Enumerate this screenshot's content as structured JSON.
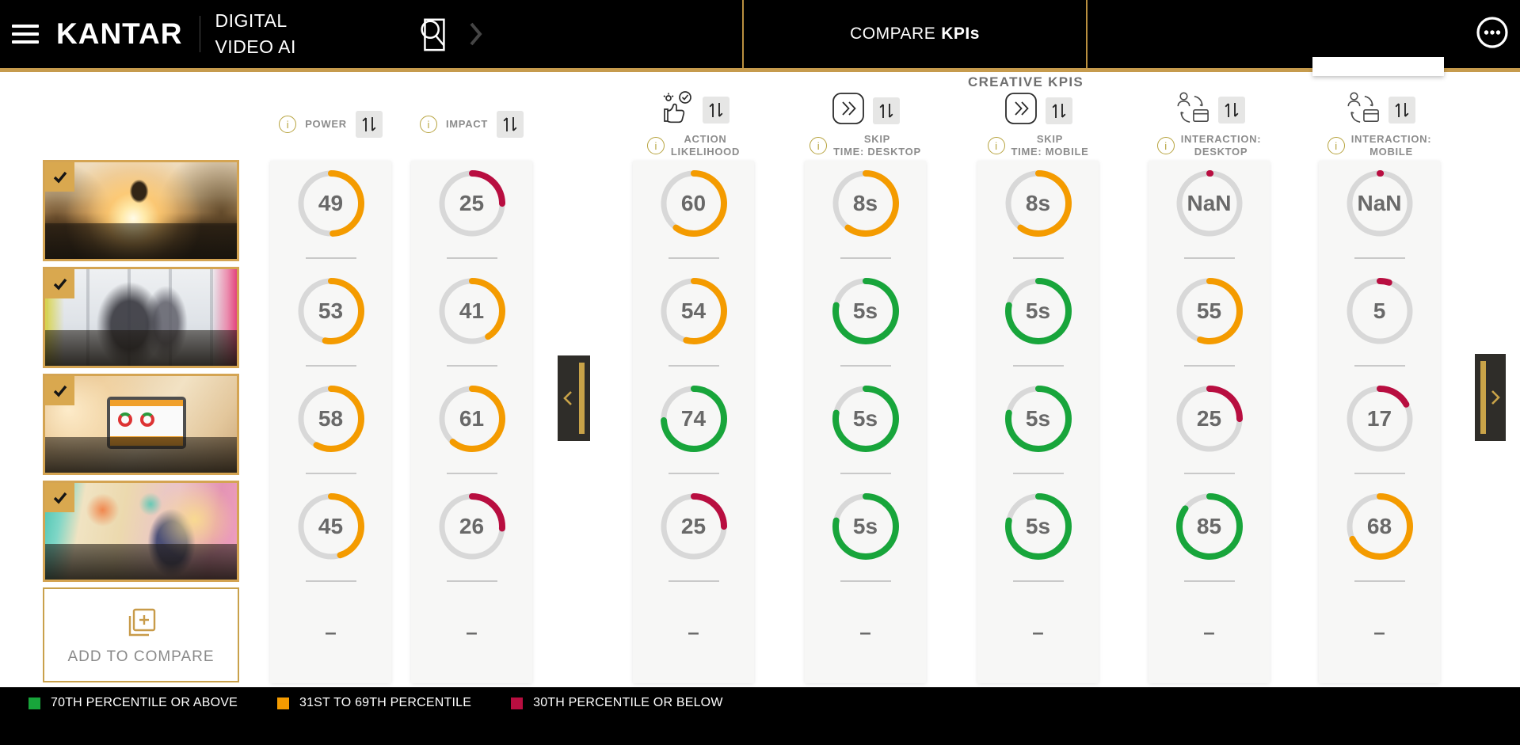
{
  "header": {
    "brand": "KANTAR",
    "product_name": [
      "DIGITAL",
      "VIDEO AI"
    ],
    "compare_title": {
      "regular": "COMPARE",
      "bold": "KPIs"
    }
  },
  "section_label": "CREATIVE KPIS",
  "sidebar": {
    "videos": [
      {
        "id": 1,
        "scene": "sunset-skateboarder",
        "selected": true
      },
      {
        "id": 2,
        "scene": "office-people",
        "selected": true
      },
      {
        "id": 3,
        "scene": "tablet-hands",
        "selected": true
      },
      {
        "id": 4,
        "scene": "craft-shop",
        "selected": true
      }
    ],
    "add_to_compare_label": "ADD TO COMPARE"
  },
  "empty_value": "–",
  "columns": [
    {
      "id": "power",
      "label": "POWER",
      "values": [
        {
          "display": "49",
          "pct": 49,
          "level": "mid"
        },
        {
          "display": "53",
          "pct": 53,
          "level": "mid"
        },
        {
          "display": "58",
          "pct": 58,
          "level": "mid"
        },
        {
          "display": "45",
          "pct": 45,
          "level": "mid"
        }
      ]
    },
    {
      "id": "impact",
      "label": "IMPACT",
      "values": [
        {
          "display": "25",
          "pct": 25,
          "level": "low"
        },
        {
          "display": "41",
          "pct": 41,
          "level": "mid"
        },
        {
          "display": "61",
          "pct": 61,
          "level": "mid"
        },
        {
          "display": "26",
          "pct": 26,
          "level": "low"
        }
      ]
    },
    {
      "id": "action-likelihood",
      "icon": "thumbs-up-check-icon",
      "label_lines": [
        "ACTION",
        "LIKELIHOOD"
      ],
      "values": [
        {
          "display": "60",
          "pct": 60,
          "level": "mid"
        },
        {
          "display": "54",
          "pct": 54,
          "level": "mid"
        },
        {
          "display": "74",
          "pct": 74,
          "level": "high"
        },
        {
          "display": "25",
          "pct": 25,
          "level": "low"
        }
      ]
    },
    {
      "id": "skip-time-desktop",
      "icon": "skip-forward-icon",
      "label_lines": [
        "SKIP",
        "TIME: DESKTOP"
      ],
      "values": [
        {
          "display": "8s",
          "pct": 60,
          "level": "mid"
        },
        {
          "display": "5s",
          "pct": 78,
          "level": "high"
        },
        {
          "display": "5s",
          "pct": 78,
          "level": "high"
        },
        {
          "display": "5s",
          "pct": 78,
          "level": "high"
        }
      ]
    },
    {
      "id": "skip-time-mobile",
      "icon": "skip-forward-icon",
      "label_lines": [
        "SKIP",
        "TIME: MOBILE"
      ],
      "values": [
        {
          "display": "8s",
          "pct": 60,
          "level": "mid"
        },
        {
          "display": "5s",
          "pct": 78,
          "level": "high"
        },
        {
          "display": "5s",
          "pct": 78,
          "level": "high"
        },
        {
          "display": "5s",
          "pct": 78,
          "level": "high"
        }
      ]
    },
    {
      "id": "interaction-desktop",
      "icon": "user-interaction-icon",
      "label_lines": [
        "INTERACTION:",
        "DESKTOP"
      ],
      "values": [
        {
          "display": "NaN",
          "pct": 0.5,
          "level": "low"
        },
        {
          "display": "55",
          "pct": 55,
          "level": "mid"
        },
        {
          "display": "25",
          "pct": 25,
          "level": "low"
        },
        {
          "display": "85",
          "pct": 85,
          "level": "high"
        }
      ]
    },
    {
      "id": "interaction-mobile",
      "icon": "user-interaction-icon",
      "label_lines": [
        "INTERACTION:",
        "MOBILE"
      ],
      "values": [
        {
          "display": "NaN",
          "pct": 0.5,
          "level": "low"
        },
        {
          "display": "5",
          "pct": 5,
          "level": "low"
        },
        {
          "display": "17",
          "pct": 17,
          "level": "low"
        },
        {
          "display": "68",
          "pct": 68,
          "level": "mid"
        }
      ]
    }
  ],
  "legend": [
    {
      "level": "high",
      "label": "70TH PERCENTILE OR ABOVE"
    },
    {
      "level": "mid",
      "label": "31ST TO 69TH PERCENTILE"
    },
    {
      "level": "low",
      "label": "30TH PERCENTILE OR BELOW"
    }
  ],
  "colors": {
    "high": "#18A53B",
    "mid": "#F49B00",
    "low": "#B80E40",
    "gold": "#C89B49",
    "track": "#D8D8D8"
  }
}
